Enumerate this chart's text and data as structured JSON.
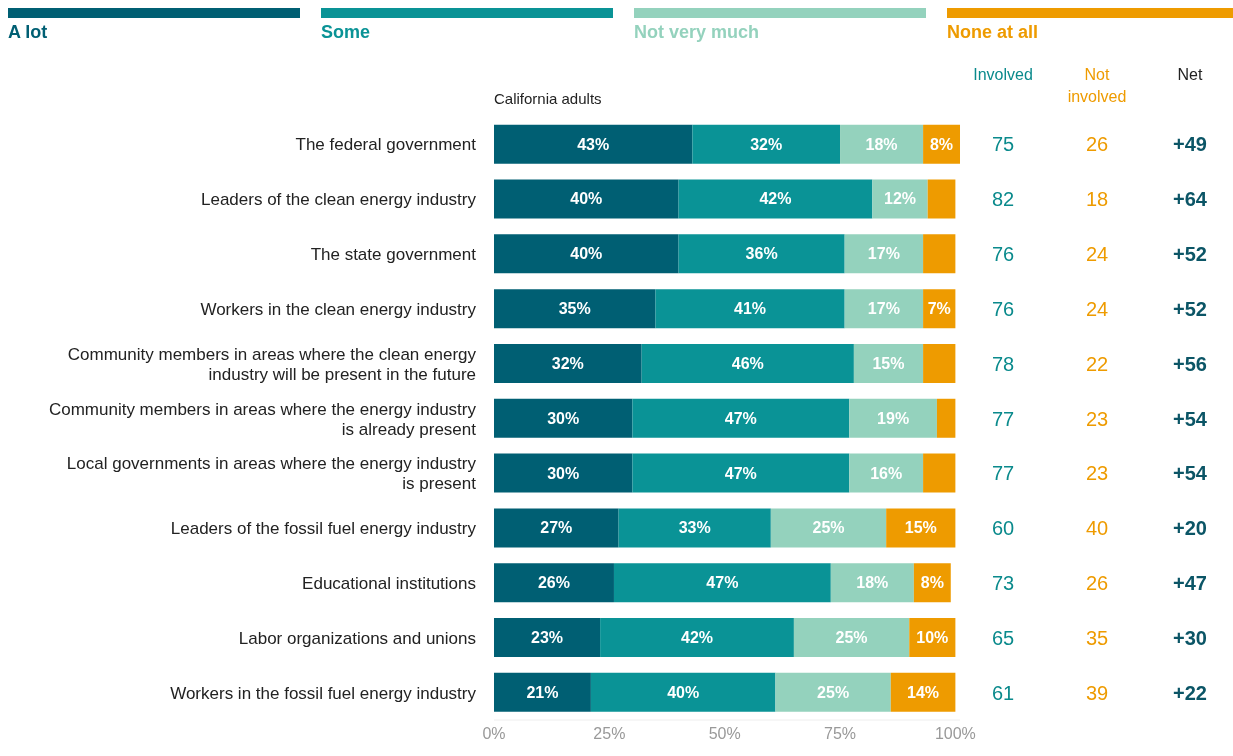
{
  "chart_data": {
    "type": "bar",
    "orientation": "horizontal",
    "stacked": true,
    "subtitle": "California adults",
    "legend": "top",
    "categories": [
      "The federal government",
      "Leaders of the clean energy industry",
      "The state government",
      "Workers in the clean energy industry",
      "Community members in areas where the clean energy industry will be present in the future",
      "Community members in areas where the energy industry is already present",
      "Local governments in areas where the energy industry is present",
      "Leaders of the fossil fuel energy industry",
      "Educational institutions",
      "Labor organizations and unions",
      "Workers in the fossil fuel energy industry"
    ],
    "series": [
      {
        "name": "A lot",
        "color": "#005f73",
        "values": [
          43,
          40,
          40,
          35,
          32,
          30,
          30,
          27,
          26,
          23,
          21
        ],
        "value_labels": [
          "43%",
          "40%",
          "40%",
          "35%",
          "32%",
          "30%",
          "30%",
          "27%",
          "26%",
          "23%",
          "21%"
        ]
      },
      {
        "name": "Some",
        "color": "#0a9396",
        "values": [
          32,
          42,
          36,
          41,
          46,
          47,
          47,
          33,
          47,
          42,
          40
        ],
        "value_labels": [
          "32%",
          "42%",
          "36%",
          "41%",
          "46%",
          "47%",
          "47%",
          "33%",
          "47%",
          "42%",
          "40%"
        ]
      },
      {
        "name": "Not very much",
        "color": "#94d2bd",
        "values": [
          18,
          12,
          17,
          17,
          15,
          19,
          16,
          25,
          18,
          25,
          25
        ],
        "value_labels": [
          "18%",
          "12%",
          "17%",
          "17%",
          "15%",
          "19%",
          "16%",
          "25%",
          "18%",
          "25%",
          "25%"
        ]
      },
      {
        "name": "None at all",
        "color": "#ee9b00",
        "values": [
          8,
          6,
          7,
          7,
          7,
          4,
          7,
          15,
          8,
          10,
          14
        ],
        "value_labels": [
          "8%",
          null,
          null,
          "7%",
          null,
          null,
          null,
          "15%",
          "8%",
          "10%",
          "14%"
        ]
      }
    ],
    "xlim": [
      0,
      101
    ],
    "xticks": [
      {
        "value": 0,
        "label": "0%"
      },
      {
        "value": 25,
        "label": "25%"
      },
      {
        "value": 50,
        "label": "50%"
      },
      {
        "value": 75,
        "label": "75%"
      },
      {
        "value": 100,
        "label": "100%"
      }
    ],
    "grid": false,
    "annotations": [
      "Involved",
      "Not involved",
      "Net",
      "75",
      "26",
      "+49",
      "82",
      "18",
      "+64",
      "76",
      "24",
      "+52",
      "76",
      "24",
      "+52",
      "78",
      "22",
      "+56",
      "77",
      "23",
      "+54",
      "77",
      "23",
      "+54",
      "60",
      "40",
      "+20",
      "73",
      "26",
      "+47",
      "65",
      "35",
      "+30",
      "61",
      "39",
      "+22"
    ]
  }
}
